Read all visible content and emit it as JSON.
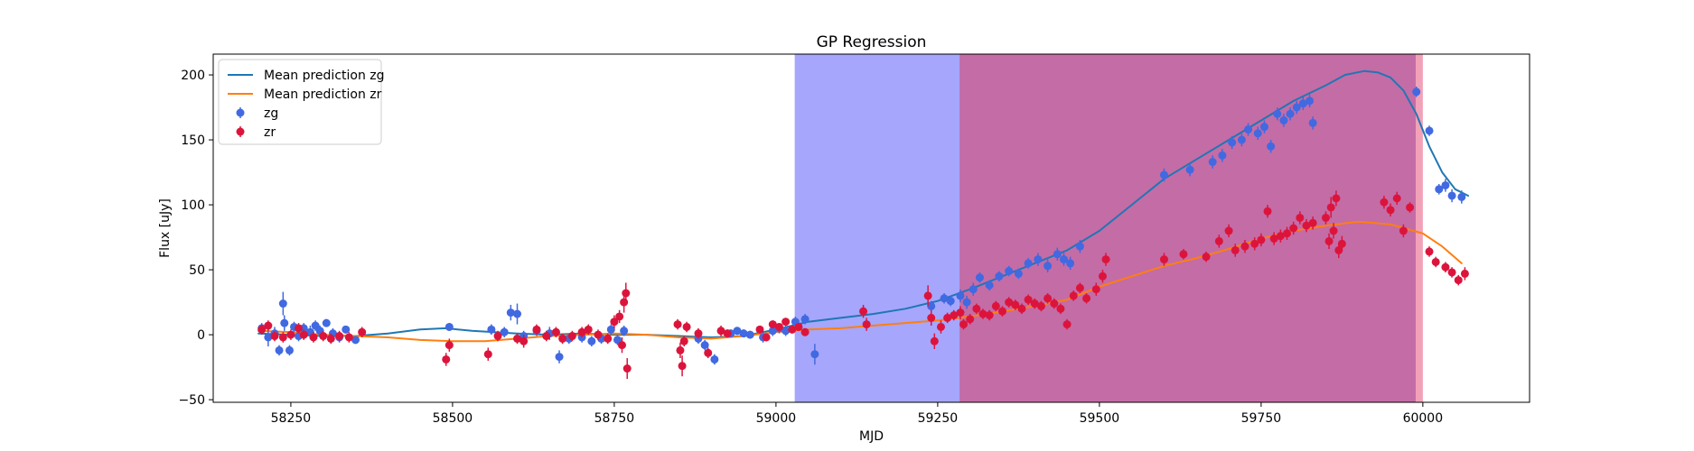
{
  "chart_data": {
    "type": "line",
    "title": "GP Regression",
    "xlabel": "MJD",
    "ylabel": "Flux [uJy]",
    "xlim": [
      58130,
      60165
    ],
    "ylim": [
      -52,
      216
    ],
    "xticks": [
      58250,
      58500,
      58750,
      59000,
      59250,
      59500,
      59750,
      60000
    ],
    "yticks": [
      -50,
      0,
      50,
      100,
      150,
      200
    ],
    "grid": false,
    "legend_position": "top-left",
    "legend": [
      "Mean prediction zg",
      "Mean prediction zr",
      "zg",
      "zr"
    ],
    "shaded_regions": [
      {
        "x": [
          59030,
          59285
        ],
        "color": "#a6a6fd"
      },
      {
        "x": [
          59285,
          59990
        ],
        "color": "#c46ca6"
      },
      {
        "x": [
          59990,
          60000
        ],
        "color": "#f2a2b8"
      }
    ],
    "lines": [
      {
        "name": "Mean prediction zg",
        "color": "#1f77b4",
        "x": [
          58200,
          58250,
          58300,
          58350,
          58400,
          58450,
          58490,
          58530,
          58600,
          58650,
          58700,
          58750,
          58800,
          58850,
          58900,
          58950,
          59000,
          59050,
          59100,
          59150,
          59200,
          59250,
          59300,
          59350,
          59400,
          59450,
          59500,
          59550,
          59600,
          59650,
          59700,
          59750,
          59800,
          59850,
          59880,
          59910,
          59930,
          59950,
          59970,
          59990,
          60010,
          60030,
          60050,
          60070
        ],
        "y": [
          1,
          0,
          -1,
          -1,
          1,
          4,
          5,
          3,
          1,
          0,
          1,
          0,
          0,
          -1,
          -2,
          -1,
          4,
          10,
          13,
          16,
          20,
          26,
          35,
          45,
          55,
          65,
          80,
          100,
          120,
          135,
          150,
          165,
          180,
          192,
          200,
          203,
          202,
          198,
          188,
          170,
          145,
          125,
          112,
          107
        ]
      },
      {
        "name": "Mean prediction zr",
        "color": "#ff7f0e",
        "x": [
          58200,
          58250,
          58300,
          58350,
          58400,
          58450,
          58500,
          58550,
          58600,
          58650,
          58700,
          58750,
          58800,
          58850,
          58900,
          58950,
          59000,
          59050,
          59100,
          59150,
          59200,
          59250,
          59300,
          59350,
          59400,
          59450,
          59500,
          59550,
          59600,
          59650,
          59700,
          59750,
          59800,
          59850,
          59900,
          59950,
          60000,
          60030,
          60060
        ],
        "y": [
          3,
          2,
          0,
          -1,
          -2,
          -4,
          -5,
          -5,
          -3,
          -1,
          0,
          1,
          0,
          -2,
          -3,
          -1,
          2,
          4,
          5,
          7,
          9,
          11,
          14,
          18,
          22,
          27,
          37,
          45,
          53,
          59,
          66,
          74,
          80,
          84,
          87,
          85,
          78,
          68,
          55
        ]
      }
    ],
    "series": [
      {
        "name": "zg",
        "color": "#4169e1",
        "points": [
          [
            58205,
            5,
            4
          ],
          [
            58215,
            -2,
            7
          ],
          [
            58225,
            1,
            5
          ],
          [
            58232,
            -12,
            4
          ],
          [
            58238,
            24,
            9
          ],
          [
            58240,
            9,
            6
          ],
          [
            58248,
            -12,
            4
          ],
          [
            58255,
            6,
            4
          ],
          [
            58262,
            -1,
            4
          ],
          [
            58270,
            5,
            4
          ],
          [
            58280,
            2,
            5
          ],
          [
            58288,
            7,
            4
          ],
          [
            58295,
            3,
            4
          ],
          [
            58305,
            9,
            3
          ],
          [
            58315,
            1,
            4
          ],
          [
            58325,
            -2,
            4
          ],
          [
            58335,
            4,
            3
          ],
          [
            58350,
            -4,
            3
          ],
          [
            58495,
            6,
            3
          ],
          [
            58560,
            4,
            4
          ],
          [
            58580,
            2,
            4
          ],
          [
            58590,
            17,
            6
          ],
          [
            58600,
            16,
            8
          ],
          [
            58610,
            -1,
            4
          ],
          [
            58630,
            3,
            4
          ],
          [
            58650,
            1,
            5
          ],
          [
            58665,
            -17,
            5
          ],
          [
            58680,
            -3,
            4
          ],
          [
            58700,
            -2,
            4
          ],
          [
            58715,
            -5,
            4
          ],
          [
            58730,
            -3,
            4
          ],
          [
            58745,
            4,
            4
          ],
          [
            58755,
            -4,
            4
          ],
          [
            58765,
            3,
            4
          ],
          [
            58880,
            -3,
            4
          ],
          [
            58890,
            -8,
            4
          ],
          [
            58905,
            -19,
            4
          ],
          [
            58930,
            1,
            3
          ],
          [
            58940,
            3,
            3
          ],
          [
            58950,
            1,
            3
          ],
          [
            58960,
            0,
            3
          ],
          [
            58980,
            -2,
            4
          ],
          [
            58995,
            3,
            4
          ],
          [
            59005,
            5,
            4
          ],
          [
            59015,
            3,
            4
          ],
          [
            59030,
            10,
            4
          ],
          [
            59045,
            12,
            4
          ],
          [
            59060,
            -15,
            8
          ],
          [
            59240,
            22,
            4
          ],
          [
            59260,
            28,
            4
          ],
          [
            59270,
            26,
            4
          ],
          [
            59285,
            30,
            5
          ],
          [
            59295,
            25,
            5
          ],
          [
            59305,
            35,
            5
          ],
          [
            59315,
            44,
            4
          ],
          [
            59330,
            38,
            4
          ],
          [
            59345,
            45,
            4
          ],
          [
            59360,
            49,
            4
          ],
          [
            59375,
            47,
            4
          ],
          [
            59390,
            55,
            4
          ],
          [
            59405,
            58,
            5
          ],
          [
            59420,
            53,
            5
          ],
          [
            59435,
            62,
            5
          ],
          [
            59445,
            58,
            5
          ],
          [
            59455,
            55,
            5
          ],
          [
            59470,
            68,
            5
          ],
          [
            59600,
            123,
            5
          ],
          [
            59640,
            127,
            5
          ],
          [
            59675,
            133,
            5
          ],
          [
            59690,
            138,
            5
          ],
          [
            59705,
            148,
            5
          ],
          [
            59720,
            150,
            5
          ],
          [
            59730,
            158,
            5
          ],
          [
            59745,
            155,
            5
          ],
          [
            59755,
            160,
            5
          ],
          [
            59765,
            145,
            5
          ],
          [
            59775,
            170,
            5
          ],
          [
            59785,
            165,
            5
          ],
          [
            59795,
            170,
            5
          ],
          [
            59805,
            175,
            5
          ],
          [
            59815,
            178,
            5
          ],
          [
            59825,
            180,
            5
          ],
          [
            59830,
            163,
            5
          ],
          [
            59990,
            187,
            4
          ],
          [
            60010,
            157,
            4
          ],
          [
            60025,
            112,
            4
          ],
          [
            60035,
            115,
            5
          ],
          [
            60045,
            107,
            5
          ],
          [
            60060,
            106,
            5
          ]
        ]
      },
      {
        "name": "zr",
        "color": "#dc143c",
        "points": [
          [
            58205,
            4,
            4
          ],
          [
            58215,
            7,
            4
          ],
          [
            58225,
            -1,
            4
          ],
          [
            58238,
            -2,
            4
          ],
          [
            58250,
            0,
            4
          ],
          [
            58262,
            5,
            4
          ],
          [
            58270,
            0,
            4
          ],
          [
            58285,
            -2,
            4
          ],
          [
            58300,
            -1,
            4
          ],
          [
            58312,
            -3,
            4
          ],
          [
            58325,
            -1,
            4
          ],
          [
            58340,
            -2,
            4
          ],
          [
            58360,
            2,
            4
          ],
          [
            58490,
            -19,
            5
          ],
          [
            58495,
            -8,
            5
          ],
          [
            58555,
            -15,
            5
          ],
          [
            58570,
            -1,
            4
          ],
          [
            58600,
            -3,
            4
          ],
          [
            58610,
            -5,
            5
          ],
          [
            58630,
            4,
            4
          ],
          [
            58645,
            -1,
            4
          ],
          [
            58660,
            2,
            4
          ],
          [
            58670,
            -3,
            4
          ],
          [
            58685,
            -1,
            4
          ],
          [
            58700,
            2,
            4
          ],
          [
            58710,
            4,
            4
          ],
          [
            58725,
            0,
            4
          ],
          [
            58740,
            -3,
            4
          ],
          [
            58750,
            10,
            5
          ],
          [
            58758,
            14,
            5
          ],
          [
            58762,
            -8,
            6
          ],
          [
            58765,
            25,
            8
          ],
          [
            58768,
            32,
            8
          ],
          [
            58770,
            -26,
            8
          ],
          [
            58848,
            8,
            4
          ],
          [
            58852,
            -12,
            6
          ],
          [
            58855,
            -24,
            8
          ],
          [
            58858,
            -5,
            4
          ],
          [
            58862,
            6,
            4
          ],
          [
            58880,
            1,
            4
          ],
          [
            58895,
            -14,
            4
          ],
          [
            58915,
            3,
            4
          ],
          [
            58925,
            1,
            3
          ],
          [
            58975,
            4,
            3
          ],
          [
            58985,
            -2,
            3
          ],
          [
            58995,
            8,
            3
          ],
          [
            59005,
            6,
            3
          ],
          [
            59015,
            10,
            3
          ],
          [
            59025,
            4,
            3
          ],
          [
            59035,
            6,
            3
          ],
          [
            59045,
            2,
            3
          ],
          [
            59135,
            18,
            5
          ],
          [
            59140,
            8,
            5
          ],
          [
            59235,
            30,
            8
          ],
          [
            59240,
            13,
            6
          ],
          [
            59245,
            -5,
            6
          ],
          [
            59255,
            6,
            5
          ],
          [
            59265,
            13,
            4
          ],
          [
            59275,
            15,
            4
          ],
          [
            59285,
            17,
            5
          ],
          [
            59290,
            8,
            4
          ],
          [
            59300,
            12,
            4
          ],
          [
            59310,
            20,
            4
          ],
          [
            59320,
            16,
            4
          ],
          [
            59330,
            15,
            4
          ],
          [
            59340,
            22,
            4
          ],
          [
            59350,
            18,
            4
          ],
          [
            59360,
            25,
            4
          ],
          [
            59370,
            23,
            4
          ],
          [
            59380,
            20,
            4
          ],
          [
            59390,
            27,
            4
          ],
          [
            59400,
            24,
            4
          ],
          [
            59410,
            22,
            4
          ],
          [
            59420,
            28,
            4
          ],
          [
            59430,
            24,
            4
          ],
          [
            59440,
            20,
            4
          ],
          [
            59450,
            8,
            4
          ],
          [
            59460,
            30,
            4
          ],
          [
            59470,
            36,
            4
          ],
          [
            59480,
            28,
            4
          ],
          [
            59495,
            35,
            5
          ],
          [
            59505,
            45,
            5
          ],
          [
            59510,
            58,
            5
          ],
          [
            59600,
            58,
            5
          ],
          [
            59630,
            62,
            4
          ],
          [
            59665,
            60,
            4
          ],
          [
            59685,
            72,
            5
          ],
          [
            59700,
            80,
            5
          ],
          [
            59710,
            65,
            5
          ],
          [
            59725,
            68,
            5
          ],
          [
            59740,
            70,
            5
          ],
          [
            59750,
            73,
            5
          ],
          [
            59760,
            95,
            5
          ],
          [
            59770,
            74,
            5
          ],
          [
            59780,
            76,
            5
          ],
          [
            59790,
            78,
            5
          ],
          [
            59800,
            82,
            5
          ],
          [
            59810,
            90,
            5
          ],
          [
            59820,
            84,
            5
          ],
          [
            59830,
            86,
            5
          ],
          [
            59850,
            90,
            5
          ],
          [
            59855,
            72,
            6
          ],
          [
            59858,
            98,
            8
          ],
          [
            59862,
            80,
            6
          ],
          [
            59866,
            105,
            6
          ],
          [
            59870,
            65,
            6
          ],
          [
            59875,
            70,
            6
          ],
          [
            59940,
            102,
            5
          ],
          [
            59950,
            96,
            5
          ],
          [
            59960,
            105,
            5
          ],
          [
            59970,
            80,
            5
          ],
          [
            59980,
            98,
            4
          ],
          [
            60010,
            64,
            4
          ],
          [
            60020,
            56,
            4
          ],
          [
            60035,
            52,
            4
          ],
          [
            60045,
            48,
            4
          ],
          [
            60055,
            42,
            4
          ],
          [
            60065,
            47,
            5
          ]
        ]
      }
    ]
  }
}
